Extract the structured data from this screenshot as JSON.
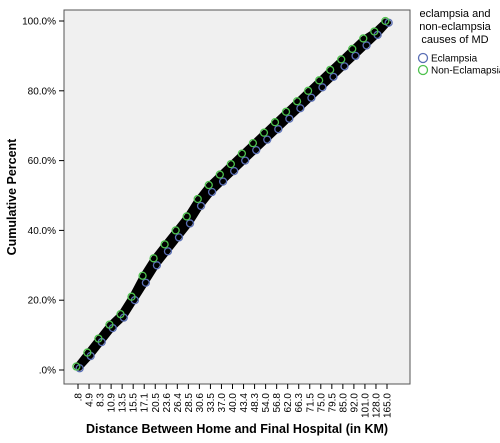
{
  "chart_data": {
    "type": "scatter",
    "xlabel": "Distance Between Home and Final Hospital (in KM)",
    "ylabel": "Cumulative Percent",
    "x_tick_labels": [
      ".8",
      "4.9",
      "8.3",
      "10.9",
      "13.5",
      "15.5",
      "17.1",
      "20.5",
      "23.6",
      "26.4",
      "28.5",
      "30.6",
      "33.5",
      "37.0",
      "40.0",
      "43.4",
      "48.3",
      "54.0",
      "56.8",
      "62.0",
      "66.3",
      "71.5",
      "75.0",
      "79.5",
      "85.0",
      "92.0",
      "101.0",
      "128.0",
      "165.0"
    ],
    "y_ticks": [
      0,
      20,
      40,
      60,
      80,
      100
    ],
    "y_tick_labels": [
      ".0%",
      "20.0%",
      "40.0%",
      "60.0%",
      "80.0%",
      "100.0%"
    ],
    "ylim": [
      0,
      100
    ],
    "legend": {
      "title_lines": [
        "eclampsia and",
        "non-eclampsia",
        "causes of MD"
      ],
      "placement": "right"
    },
    "series": [
      {
        "name": "Eclampsia",
        "color": "#5a6fb5",
        "x_index": [
          0,
          1,
          2,
          3,
          4,
          5,
          6,
          7,
          8,
          9,
          10,
          11,
          12,
          13,
          14,
          15,
          16,
          17,
          18,
          19,
          20,
          21,
          22,
          23,
          24,
          25,
          26,
          27,
          28
        ],
        "values": [
          0.5,
          4,
          8,
          12,
          15,
          20,
          25,
          30,
          34,
          38,
          42,
          47,
          51,
          54,
          57,
          60,
          63,
          66,
          69,
          72,
          75,
          78,
          81,
          84,
          87,
          90,
          93,
          96,
          99.5
        ]
      },
      {
        "name": "Non-Eclamapsia",
        "color": "#4ec24e",
        "x_index": [
          0,
          1,
          2,
          3,
          4,
          5,
          6,
          7,
          8,
          9,
          10,
          11,
          12,
          13,
          14,
          15,
          16,
          17,
          18,
          19,
          20,
          21,
          22,
          23,
          24,
          25,
          26,
          27,
          28
        ],
        "values": [
          1,
          5,
          9,
          13,
          16,
          21,
          27,
          32,
          36,
          40,
          44,
          49,
          53,
          56,
          59,
          62,
          65,
          68,
          71,
          74,
          77,
          80,
          83,
          86,
          89,
          92,
          95,
          97,
          100
        ]
      }
    ]
  }
}
